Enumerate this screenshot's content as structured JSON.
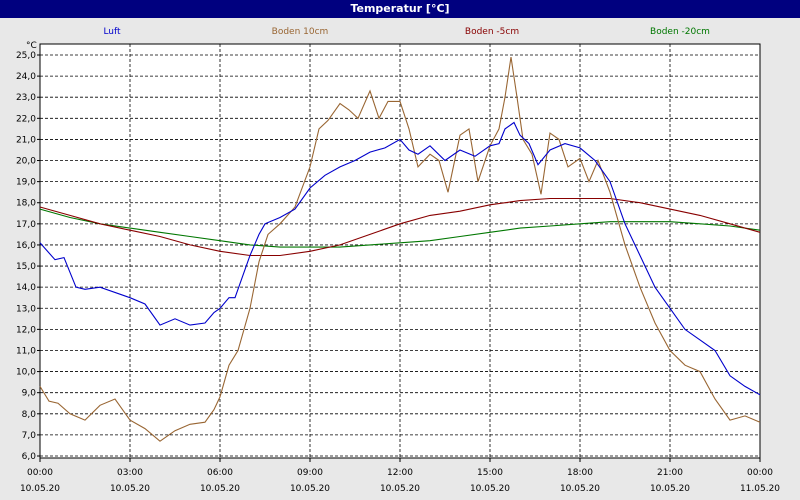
{
  "window": {
    "title": "Temperatur [°C]"
  },
  "chart_data": {
    "type": "line",
    "title": "Temperatur [°C]",
    "ylabel": "°C",
    "ylim": [
      6.0,
      25.5
    ],
    "yticks": [
      "25,0",
      "24,0",
      "23,0",
      "22,0",
      "21,0",
      "20,0",
      "19,0",
      "18,0",
      "17,0",
      "16,0",
      "15,0",
      "14,0",
      "13,0",
      "12,0",
      "11,0",
      "10,0",
      "9,0",
      "8,0",
      "7,0",
      "6,0"
    ],
    "xticks": [
      {
        "time": "00:00",
        "date": "10.05.20"
      },
      {
        "time": "03:00",
        "date": "10.05.20"
      },
      {
        "time": "06:00",
        "date": "10.05.20"
      },
      {
        "time": "09:00",
        "date": "10.05.20"
      },
      {
        "time": "12:00",
        "date": "10.05.20"
      },
      {
        "time": "15:00",
        "date": "10.05.20"
      },
      {
        "time": "18:00",
        "date": "10.05.20"
      },
      {
        "time": "21:00",
        "date": "10.05.20"
      },
      {
        "time": "00:00",
        "date": "11.05.20"
      }
    ],
    "grid": true,
    "x_unit": "hours since 10.05.20 00:00",
    "series": [
      {
        "name": "Luft",
        "color": "#0000cc",
        "x": [
          0,
          0.5,
          0.8,
          1.2,
          1.5,
          2,
          3,
          3.5,
          4,
          4.5,
          5,
          5.5,
          5.8,
          6,
          6.3,
          6.5,
          7,
          7.3,
          7.5,
          8,
          8.5,
          9,
          9.5,
          10,
          10.5,
          11,
          11.5,
          12,
          12.3,
          12.6,
          13,
          13.5,
          14,
          14.5,
          15,
          15.3,
          15.5,
          15.8,
          16,
          16.3,
          16.6,
          17,
          17.5,
          18,
          18.5,
          19,
          19.5,
          20,
          20.5,
          21,
          21.5,
          22,
          22.5,
          23,
          23.5,
          24
        ],
        "y": [
          16.1,
          15.3,
          15.4,
          14.0,
          13.9,
          14.0,
          13.5,
          13.2,
          12.2,
          12.5,
          12.2,
          12.3,
          12.8,
          13.0,
          13.5,
          13.5,
          15.5,
          16.5,
          17.0,
          17.3,
          17.7,
          18.7,
          19.3,
          19.7,
          20.0,
          20.4,
          20.6,
          21.0,
          20.5,
          20.3,
          20.7,
          20.0,
          20.5,
          20.2,
          20.7,
          20.8,
          21.5,
          21.8,
          21.2,
          20.8,
          19.8,
          20.5,
          20.8,
          20.6,
          20.0,
          19.0,
          17.0,
          15.5,
          14.0,
          13.0,
          12.0,
          11.5,
          11.0,
          9.8,
          9.3,
          8.9
        ]
      },
      {
        "name": "Boden 10cm",
        "color": "#996633",
        "x": [
          0,
          0.3,
          0.6,
          1,
          1.5,
          2,
          2.5,
          3,
          3.5,
          4,
          4.5,
          5,
          5.5,
          5.8,
          6,
          6.3,
          6.6,
          7,
          7.3,
          7.6,
          8,
          8.5,
          9,
          9.3,
          9.6,
          10,
          10.3,
          10.6,
          11,
          11.3,
          11.6,
          12,
          12.3,
          12.6,
          13,
          13.3,
          13.6,
          14,
          14.3,
          14.6,
          15,
          15.3,
          15.5,
          15.7,
          15.9,
          16.1,
          16.4,
          16.7,
          17,
          17.3,
          17.6,
          18,
          18.3,
          18.6,
          19,
          19.5,
          20,
          20.5,
          21,
          21.5,
          22,
          22.5,
          23,
          23.5,
          24
        ],
        "y": [
          9.3,
          8.6,
          8.5,
          8.0,
          7.7,
          8.4,
          8.7,
          7.7,
          7.3,
          6.7,
          7.2,
          7.5,
          7.6,
          8.2,
          8.8,
          10.3,
          11.0,
          13.0,
          15.2,
          16.5,
          17.0,
          17.8,
          19.7,
          21.5,
          21.9,
          22.7,
          22.4,
          22.0,
          23.3,
          22.0,
          22.8,
          22.8,
          21.5,
          19.7,
          20.3,
          20.0,
          18.5,
          21.2,
          21.5,
          19.0,
          20.7,
          21.5,
          23.0,
          24.9,
          23.0,
          21.0,
          20.3,
          18.4,
          21.3,
          21.0,
          19.7,
          20.1,
          19.0,
          20.0,
          18.5,
          16.0,
          14.0,
          12.3,
          11.0,
          10.3,
          10.0,
          8.7,
          7.7,
          7.9,
          7.6
        ]
      },
      {
        "name": "Boden -5cm",
        "color": "#880000",
        "x": [
          0,
          1,
          2,
          3,
          4,
          5,
          6,
          7,
          8,
          9,
          10,
          11,
          12,
          13,
          14,
          15,
          16,
          17,
          18,
          19,
          20,
          21,
          22,
          23,
          24
        ],
        "y": [
          17.8,
          17.4,
          17.0,
          16.7,
          16.4,
          16.0,
          15.7,
          15.5,
          15.5,
          15.7,
          16.0,
          16.5,
          17.0,
          17.4,
          17.6,
          17.9,
          18.1,
          18.2,
          18.2,
          18.2,
          18.0,
          17.7,
          17.4,
          17.0,
          16.6
        ]
      },
      {
        "name": "Boden -20cm",
        "color": "#007700",
        "x": [
          0,
          1,
          2,
          3,
          4,
          5,
          6,
          7,
          8,
          9,
          10,
          11,
          12,
          13,
          14,
          15,
          16,
          17,
          18,
          19,
          20,
          21,
          22,
          23,
          24
        ],
        "y": [
          17.7,
          17.3,
          17.0,
          16.8,
          16.6,
          16.4,
          16.2,
          16.0,
          15.9,
          15.9,
          15.9,
          16.0,
          16.1,
          16.2,
          16.4,
          16.6,
          16.8,
          16.9,
          17.0,
          17.1,
          17.1,
          17.1,
          17.0,
          16.9,
          16.7
        ]
      }
    ]
  }
}
